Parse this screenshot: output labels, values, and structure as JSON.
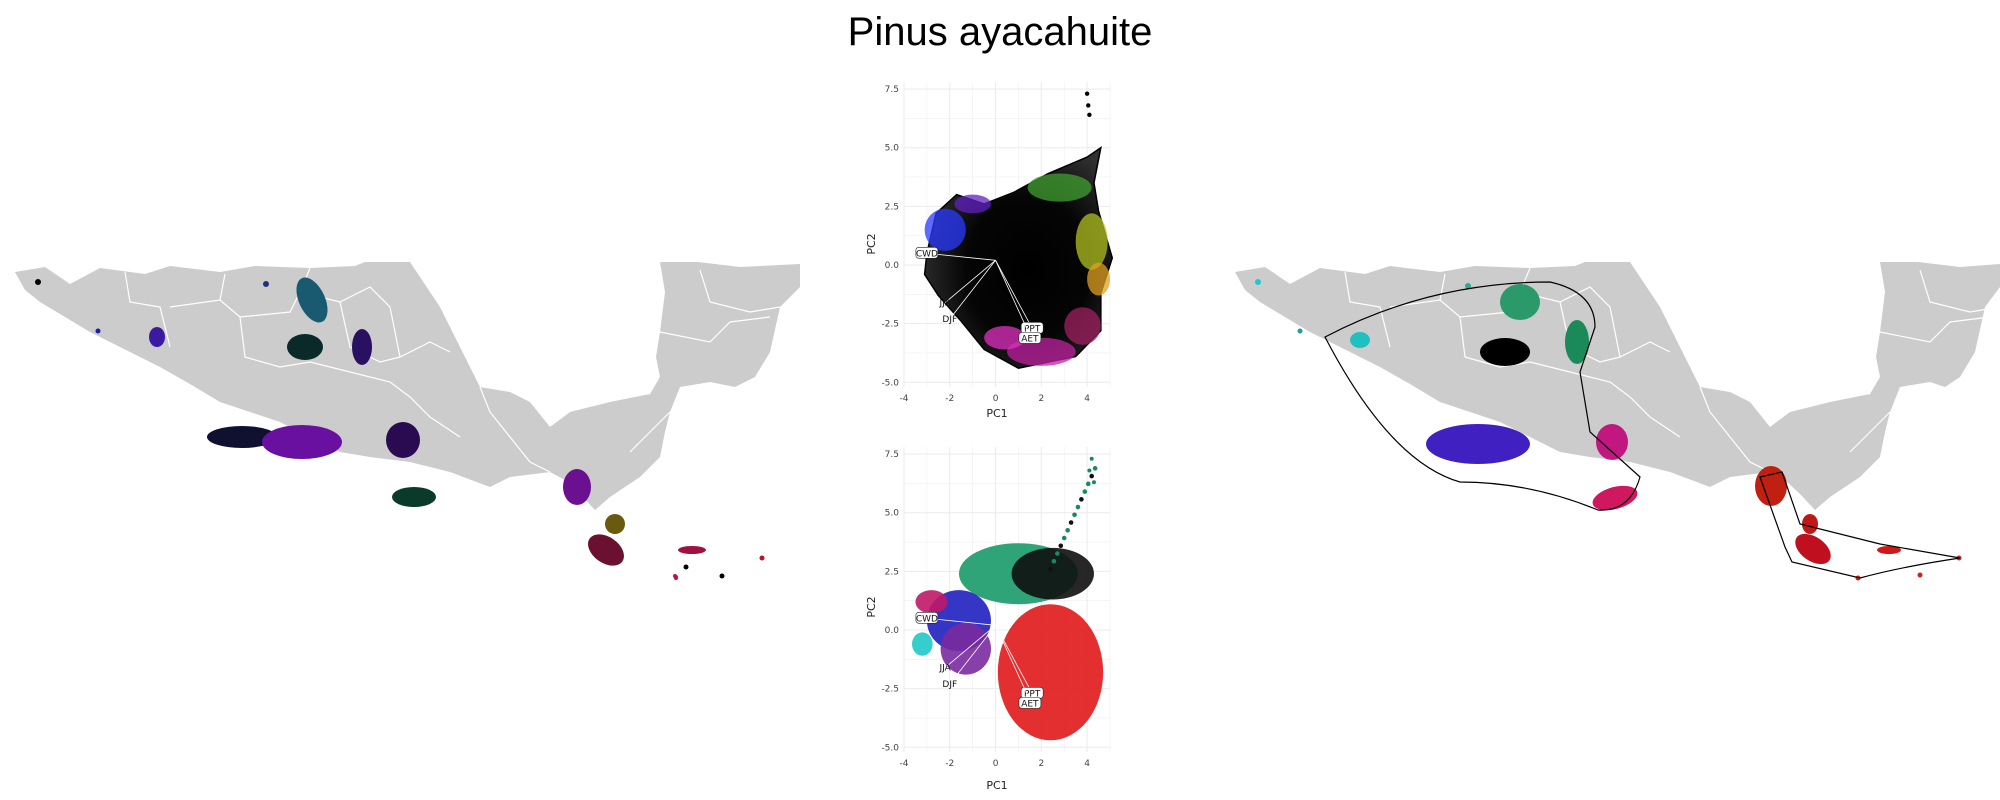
{
  "title": "Pinus ayacahuite",
  "colors": {
    "land": "#cccccc",
    "border": "#ffffff",
    "grid": "#ebebeb",
    "hull": "#000000"
  },
  "chart_data": [
    {
      "type": "scatter",
      "panel": "pca-top",
      "title": "",
      "xlabel": "PC1",
      "ylabel": "PC2",
      "xlim": [
        -4,
        5
      ],
      "ylim": [
        -5.2,
        7.8
      ],
      "xticks": [
        "-4",
        "-2",
        "0",
        "2",
        "4"
      ],
      "yticks": [
        "7.5",
        "5.0",
        "2.5",
        "0.0",
        "-2.5",
        "-5.0"
      ],
      "grid": true,
      "outlier_points": [
        {
          "x": 4.0,
          "y": 7.3
        },
        {
          "x": 4.05,
          "y": 6.8
        },
        {
          "x": 4.1,
          "y": 6.4
        }
      ],
      "cloud_outline": [
        [
          -3.0,
          0.5
        ],
        [
          -2.6,
          2.2
        ],
        [
          -1.7,
          3.0
        ],
        [
          -0.5,
          2.6
        ],
        [
          0.8,
          3.1
        ],
        [
          2.3,
          3.9
        ],
        [
          4.0,
          4.6
        ],
        [
          4.6,
          5.0
        ],
        [
          4.3,
          3.5
        ],
        [
          4.5,
          2.3
        ],
        [
          5.1,
          0.3
        ],
        [
          4.6,
          -1.2
        ],
        [
          4.6,
          -2.8
        ],
        [
          3.5,
          -3.9
        ],
        [
          2.5,
          -4.1
        ],
        [
          1.0,
          -4.4
        ],
        [
          -0.5,
          -3.6
        ],
        [
          -1.5,
          -2.4
        ],
        [
          -2.5,
          -1.3
        ],
        [
          -3.1,
          -0.4
        ]
      ],
      "loading_vectors": [
        {
          "label": "CWD",
          "x": -3.0,
          "y": 0.5
        },
        {
          "label": "JJA",
          "x": -2.2,
          "y": -1.6
        },
        {
          "label": "DJF",
          "x": -2.0,
          "y": -2.3
        },
        {
          "label": "PPT",
          "x": 1.6,
          "y": -2.7
        },
        {
          "label": "AET",
          "x": 1.5,
          "y": -3.0
        }
      ]
    },
    {
      "type": "scatter",
      "panel": "pca-bottom",
      "title": "",
      "xlabel": "PC1",
      "ylabel": "PC2",
      "xlim": [
        -4,
        5
      ],
      "ylim": [
        -5.2,
        7.8
      ],
      "xticks": [
        "-4",
        "-2",
        "0",
        "2",
        "4"
      ],
      "yticks": [
        "7.5",
        "5.0",
        "2.5",
        "0.0",
        "-2.5",
        "-5.0"
      ],
      "grid": true,
      "clusters": [
        {
          "color": "#1a9a6a",
          "cx": 1.0,
          "cy": 2.4,
          "rx": 2.6,
          "ry": 1.3
        },
        {
          "color": "#101010",
          "cx": 2.5,
          "cy": 2.4,
          "rx": 1.8,
          "ry": 1.1
        },
        {
          "color": "#e01818",
          "cx": 2.4,
          "cy": -1.8,
          "rx": 2.3,
          "ry": 2.9
        },
        {
          "color": "#2020c0",
          "cx": -1.6,
          "cy": 0.4,
          "rx": 1.4,
          "ry": 1.3
        },
        {
          "color": "#7a2aa0",
          "cx": -1.3,
          "cy": -0.8,
          "rx": 1.1,
          "ry": 1.1
        },
        {
          "color": "#20c8c8",
          "cx": -3.2,
          "cy": -0.6,
          "rx": 0.45,
          "ry": 0.5
        },
        {
          "color": "#c01868",
          "cx": -2.8,
          "cy": 1.2,
          "rx": 0.7,
          "ry": 0.5
        }
      ],
      "loading_vectors": [
        {
          "label": "CWD",
          "x": -3.0,
          "y": 0.5
        },
        {
          "label": "JJA",
          "x": -2.2,
          "y": -1.6
        },
        {
          "label": "DJF",
          "x": -2.0,
          "y": -2.3
        },
        {
          "label": "PPT",
          "x": 1.6,
          "y": -2.7
        },
        {
          "label": "AET",
          "x": 1.5,
          "y": -3.0
        }
      ]
    }
  ]
}
